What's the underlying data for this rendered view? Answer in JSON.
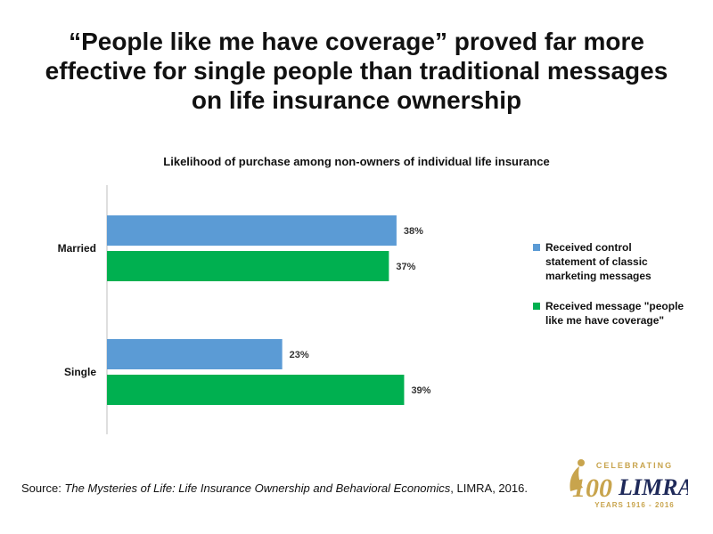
{
  "title": "“People like me have coverage” proved far more effective for single people than traditional messages on life insurance ownership",
  "chart_data": {
    "type": "bar",
    "orientation": "horizontal",
    "title": "Likelihood of purchase among non-owners of individual life insurance",
    "categories": [
      "Married",
      "Single"
    ],
    "series": [
      {
        "name": "Received control statement of classic marketing messages",
        "values": [
          38,
          23
        ],
        "labels": [
          "38%",
          "23%"
        ],
        "color": "#5B9BD5"
      },
      {
        "name": "Received message \"people like me have coverage\"",
        "values": [
          37,
          39
        ],
        "labels": [
          "37%",
          "39%"
        ],
        "color": "#00B050"
      }
    ],
    "xlim": [
      0,
      50
    ],
    "grid": false,
    "legend": "right"
  },
  "source": {
    "prefix": "Source: ",
    "title": "The Mysteries of Life: Life Insurance Ownership  and Behavioral Economics",
    "suffix": ", LIMRA, 2016."
  },
  "logo": {
    "top_text": "CELEBRATING",
    "number": "100",
    "brand": "LIMRA",
    "bottom_text": "YEARS 1916 - 2016",
    "colors": {
      "gold": "#C8A44D",
      "navy": "#1F2A5A"
    }
  }
}
